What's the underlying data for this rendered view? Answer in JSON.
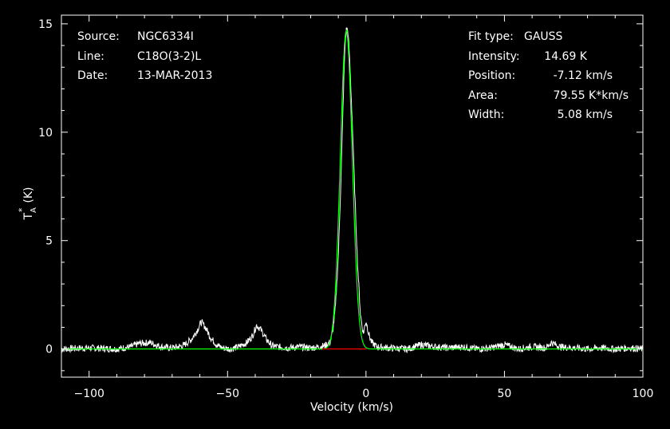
{
  "info_left": [
    {
      "label": "Source:",
      "value": "NGC6334I"
    },
    {
      "label": "Line:",
      "value": "C18O(3-2)L"
    },
    {
      "label": "Date:",
      "value": "13-MAR-2013"
    }
  ],
  "info_right": [
    {
      "label": "Fit type:",
      "value": "GAUSS"
    },
    {
      "label": "Intensity:",
      "value": "14.69 K"
    },
    {
      "label": "Position:",
      "value": "-7.12 km/s"
    },
    {
      "label": "Area:",
      "value": "79.55 K*km/s"
    },
    {
      "label": "Width:",
      "value": "5.08 km/s"
    }
  ],
  "colors": {
    "background": "#000000",
    "frame": "#ffffff",
    "data": "#ffffff",
    "fit": "#00ff00",
    "baseline": "#ff0000"
  },
  "chart_data": {
    "type": "line",
    "xlabel": "Velocity (km/s)",
    "ylabel_main": "T",
    "ylabel_sub": "A",
    "ylabel_sup": "*",
    "ylabel_unit": "(K)",
    "xlim": [
      -110,
      100
    ],
    "ylim": [
      -1.3,
      15.4
    ],
    "xticks": [
      -100,
      -50,
      0,
      50,
      100
    ],
    "yticks": [
      0,
      5,
      10,
      15
    ],
    "grid": false,
    "series": [
      {
        "role": "data",
        "x": [
          -110,
          -100,
          -90,
          -85,
          -82,
          -78,
          -74,
          -70,
          -66,
          -63,
          -61,
          -59.5,
          -58,
          -56,
          -54,
          -52,
          -49,
          -46,
          -43,
          -41,
          -39.5,
          -38,
          -36,
          -34,
          -32,
          -28,
          -24,
          -20,
          -17,
          -15,
          -13,
          -12,
          -11,
          -10,
          -9,
          -8,
          -7.5,
          -7,
          -6.5,
          -6,
          -5,
          -4,
          -3,
          -2,
          -1,
          -0.5,
          0,
          1,
          2,
          4,
          8,
          15,
          20,
          25,
          30,
          35,
          40,
          45,
          50,
          55,
          60,
          65,
          67,
          70,
          75,
          80,
          85,
          90,
          95,
          100
        ],
        "values": [
          0.0,
          0.05,
          0.0,
          0.1,
          0.25,
          0.3,
          0.1,
          0.05,
          0.15,
          0.45,
          0.85,
          1.25,
          1.0,
          0.5,
          0.2,
          0.05,
          0.0,
          0.1,
          0.3,
          0.6,
          1.1,
          0.9,
          0.45,
          0.15,
          0.1,
          0.05,
          0.1,
          0.05,
          0.1,
          0.15,
          0.3,
          0.8,
          2.0,
          4.3,
          8.0,
          12.5,
          14.2,
          14.85,
          14.6,
          13.6,
          10.6,
          7.0,
          3.8,
          1.6,
          0.7,
          1.0,
          1.3,
          0.7,
          0.3,
          0.1,
          0.05,
          0.0,
          0.2,
          0.1,
          0.05,
          0.1,
          0.0,
          0.05,
          0.2,
          0.0,
          0.1,
          0.05,
          0.3,
          0.1,
          0.05,
          0.0,
          0.05,
          0.0,
          0.05,
          0.0
        ]
      },
      {
        "role": "fit",
        "model": "gaussian",
        "amplitude": 14.69,
        "center": -7.12,
        "fwhm": 5.08,
        "x_range": [
          -110,
          100
        ]
      },
      {
        "role": "baseline",
        "x": [
          -16,
          0
        ],
        "values": [
          0,
          0
        ]
      }
    ]
  }
}
